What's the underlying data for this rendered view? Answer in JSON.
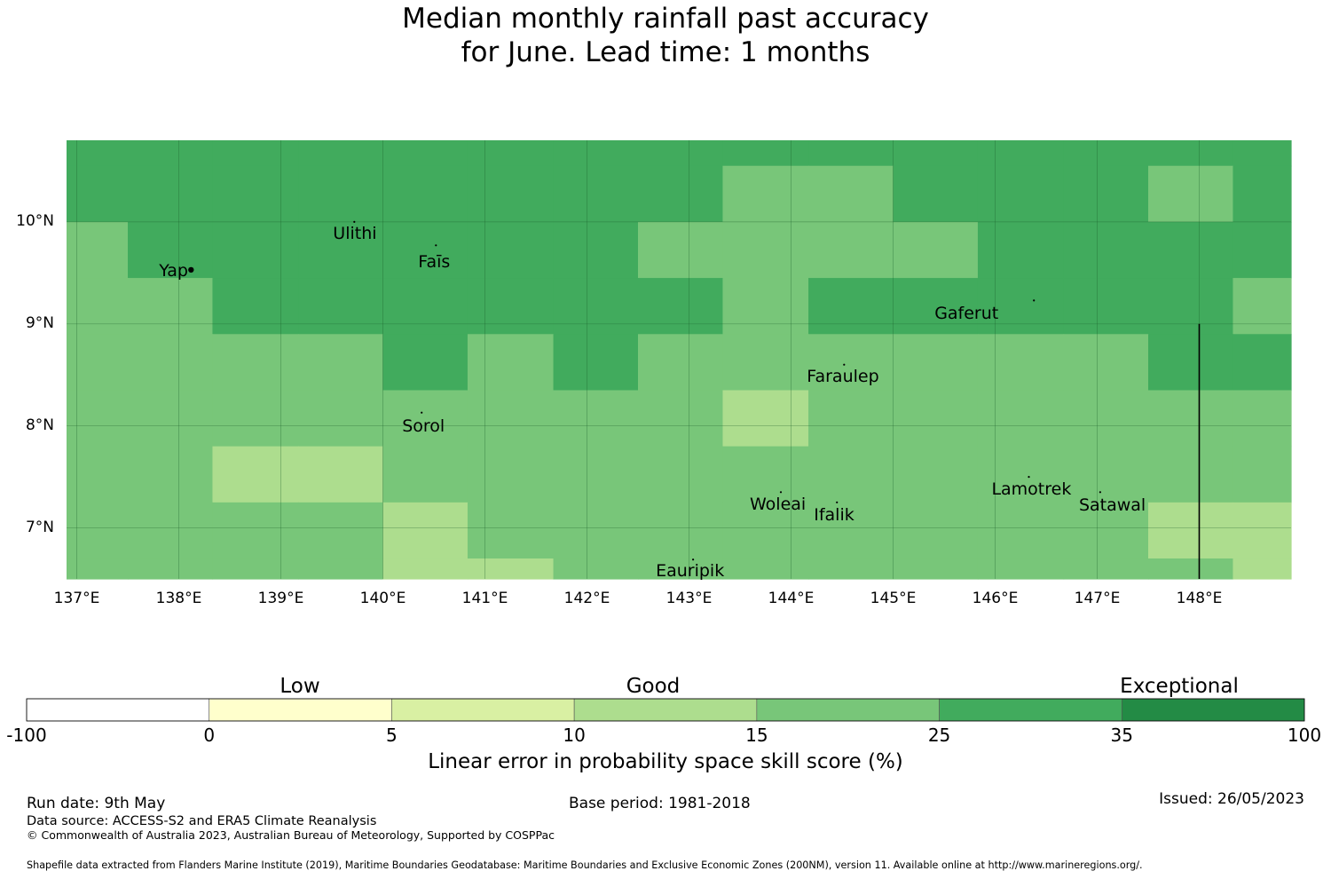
{
  "title": {
    "line1": "Median monthly rainfall past accuracy",
    "line2": "for June. Lead time: 1 months"
  },
  "map": {
    "lon_ticks": [
      "137°E",
      "138°E",
      "139°E",
      "140°E",
      "141°E",
      "142°E",
      "143°E",
      "144°E",
      "145°E",
      "146°E",
      "147°E",
      "148°E"
    ],
    "lat_ticks": [
      "10°N",
      "9°N",
      "8°N",
      "7°N"
    ],
    "extent": {
      "lon_min": 136.9,
      "lon_max": 148.9,
      "lat_min": 6.5,
      "lat_max": 10.8
    },
    "islands": [
      {
        "name": "Ulithi",
        "lon": 139.72,
        "lat": 10.0
      },
      {
        "name": "Faīs",
        "lon": 140.52,
        "lat": 9.77
      },
      {
        "name": "Yap",
        "lon": 138.12,
        "lat": 9.53
      },
      {
        "name": "Gaferut",
        "lon": 146.38,
        "lat": 9.23
      },
      {
        "name": "Faraulep",
        "lon": 144.52,
        "lat": 8.6
      },
      {
        "name": "Sorol",
        "lon": 140.38,
        "lat": 8.13
      },
      {
        "name": "Woleai",
        "lon": 143.9,
        "lat": 7.35
      },
      {
        "name": "Ifalik",
        "lon": 144.45,
        "lat": 7.25
      },
      {
        "name": "Lamotrek",
        "lon": 146.33,
        "lat": 7.5
      },
      {
        "name": "Satawal",
        "lon": 147.03,
        "lat": 7.35
      },
      {
        "name": "Eauripik",
        "lon": 143.04,
        "lat": 6.69
      }
    ],
    "eez_boundary_lon": 148.0
  },
  "colors": {
    "exceptional": "#238b45",
    "good_high": "#41ab5d",
    "good_mid": "#78c679",
    "good_low": "#addd8e",
    "low_high": "#d9f0a3",
    "low_low": "#ffffcc",
    "none": "#ffffff"
  },
  "colorbar": {
    "categories": [
      "Low",
      "Good",
      "Exceptional"
    ],
    "ticks": [
      "-100",
      "0",
      "5",
      "10",
      "15",
      "25",
      "35",
      "100"
    ],
    "title": "Linear error in probability space skill score (%)"
  },
  "chart_data": {
    "type": "heatmap",
    "title": "Median monthly rainfall past accuracy for June. Lead time: 1 months",
    "xlabel": "",
    "ylabel": "",
    "grid": true,
    "legend": "bottom",
    "color_classes": [
      "25-35",
      "15-25",
      "10-15"
    ],
    "class_bins": [
      -100,
      0,
      5,
      10,
      15,
      25,
      35,
      100
    ],
    "lon_edges": [
      136.9,
      137.5,
      138.33,
      139.17,
      140.0,
      140.83,
      141.67,
      142.5,
      143.33,
      144.17,
      145.0,
      145.83,
      146.67,
      147.5,
      148.33,
      148.9
    ],
    "lat_rows": [
      {
        "lat_top": 10.8,
        "lat_bottom": 10.55,
        "classes": [
          "25-35",
          "25-35",
          "25-35",
          "25-35",
          "25-35",
          "25-35",
          "25-35",
          "25-35",
          "25-35",
          "25-35",
          "25-35",
          "25-35",
          "25-35",
          "25-35",
          "25-35"
        ]
      },
      {
        "lat_top": 10.55,
        "lat_bottom": 10.0,
        "classes": [
          "25-35",
          "25-35",
          "25-35",
          "25-35",
          "25-35",
          "25-35",
          "25-35",
          "25-35",
          "15-25",
          "15-25",
          "25-35",
          "25-35",
          "25-35",
          "15-25",
          "25-35"
        ]
      },
      {
        "lat_top": 10.0,
        "lat_bottom": 9.45,
        "classes": [
          "15-25",
          "25-35",
          "25-35",
          "25-35",
          "25-35",
          "25-35",
          "25-35",
          "15-25",
          "15-25",
          "15-25",
          "15-25",
          "25-35",
          "25-35",
          "25-35",
          "25-35"
        ]
      },
      {
        "lat_top": 9.45,
        "lat_bottom": 8.9,
        "classes": [
          "15-25",
          "15-25",
          "25-35",
          "25-35",
          "25-35",
          "25-35",
          "25-35",
          "25-35",
          "15-25",
          "25-35",
          "25-35",
          "25-35",
          "25-35",
          "25-35",
          "15-25"
        ]
      },
      {
        "lat_top": 8.9,
        "lat_bottom": 8.35,
        "classes": [
          "15-25",
          "15-25",
          "15-25",
          "15-25",
          "25-35",
          "15-25",
          "25-35",
          "15-25",
          "15-25",
          "15-25",
          "15-25",
          "15-25",
          "15-25",
          "25-35",
          "25-35"
        ]
      },
      {
        "lat_top": 8.35,
        "lat_bottom": 7.8,
        "classes": [
          "15-25",
          "15-25",
          "15-25",
          "15-25",
          "15-25",
          "15-25",
          "15-25",
          "15-25",
          "10-15",
          "15-25",
          "15-25",
          "15-25",
          "15-25",
          "15-25",
          "15-25"
        ]
      },
      {
        "lat_top": 7.8,
        "lat_bottom": 7.25,
        "classes": [
          "15-25",
          "15-25",
          "10-15",
          "10-15",
          "15-25",
          "15-25",
          "15-25",
          "15-25",
          "15-25",
          "15-25",
          "15-25",
          "15-25",
          "15-25",
          "15-25",
          "15-25"
        ]
      },
      {
        "lat_top": 7.25,
        "lat_bottom": 6.7,
        "classes": [
          "15-25",
          "15-25",
          "15-25",
          "15-25",
          "10-15",
          "15-25",
          "15-25",
          "15-25",
          "15-25",
          "15-25",
          "15-25",
          "15-25",
          "15-25",
          "10-15",
          "10-15"
        ]
      },
      {
        "lat_top": 6.7,
        "lat_bottom": 6.5,
        "classes": [
          "15-25",
          "15-25",
          "15-25",
          "15-25",
          "10-15",
          "10-15",
          "15-25",
          "15-25",
          "15-25",
          "15-25",
          "15-25",
          "15-25",
          "15-25",
          "15-25",
          "10-15"
        ]
      }
    ]
  },
  "footer": {
    "run_date": "Run date: 9th May",
    "base_period": "Base period: 1981-2018",
    "issued": "Issued: 26/05/2023",
    "data_source": "Data source: ACCESS-S2 and ERA5 Climate Reanalysis",
    "copyright": "© Commonwealth of Australia 2023, Australian Bureau of Meteorology, Supported by COSPPac",
    "shapefile": "Shapefile data extracted from Flanders Marine Institute (2019), Maritime Boundaries Geodatabase: Maritime Boundaries and Exclusive Economic Zones (200NM), version 11. Available online at http://www.marineregions.org/."
  }
}
